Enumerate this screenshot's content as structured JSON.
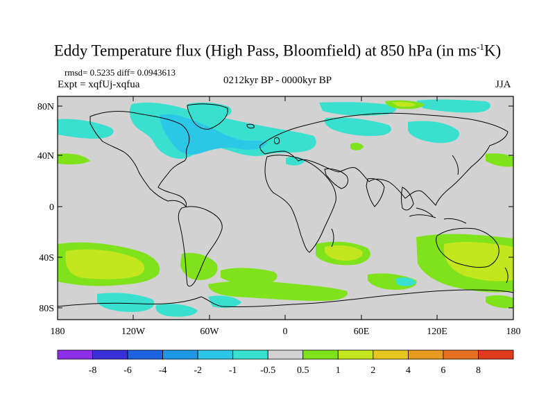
{
  "map": {
    "title_main": "Eddy Temperature flux (High Pass, Bloomfield) at 850 hPa (in ms",
    "title_sup": "-1",
    "title_end": "K)",
    "stats": "rmsd= 0.5235 diff= 0.0943613",
    "experiment": "Expt = xqfUj-xqfua",
    "period": "0212kyr BP - 0000kyr BP",
    "season": "JJA",
    "lat_labels": [
      "80N",
      "40N",
      "0",
      "40S",
      "80S"
    ],
    "lon_labels": [
      "180",
      "120W",
      "60W",
      "0",
      "60E",
      "120E",
      "180"
    ],
    "background_color": "#d2d2d2",
    "colorbar": {
      "labels": [
        "-8",
        "-6",
        "-4",
        "-2",
        "-1",
        "-0.5",
        "0.5",
        "1",
        "2",
        "4",
        "6",
        "8"
      ],
      "colors": [
        "#8d2fe6",
        "#3a2fd8",
        "#1f63e0",
        "#1f99e6",
        "#2cc7e6",
        "#39e0cf",
        "#d2d2d2",
        "#7fe21a",
        "#c3e61f",
        "#e6c51f",
        "#e69a1f",
        "#e6701f",
        "#e03a1f"
      ]
    }
  }
}
